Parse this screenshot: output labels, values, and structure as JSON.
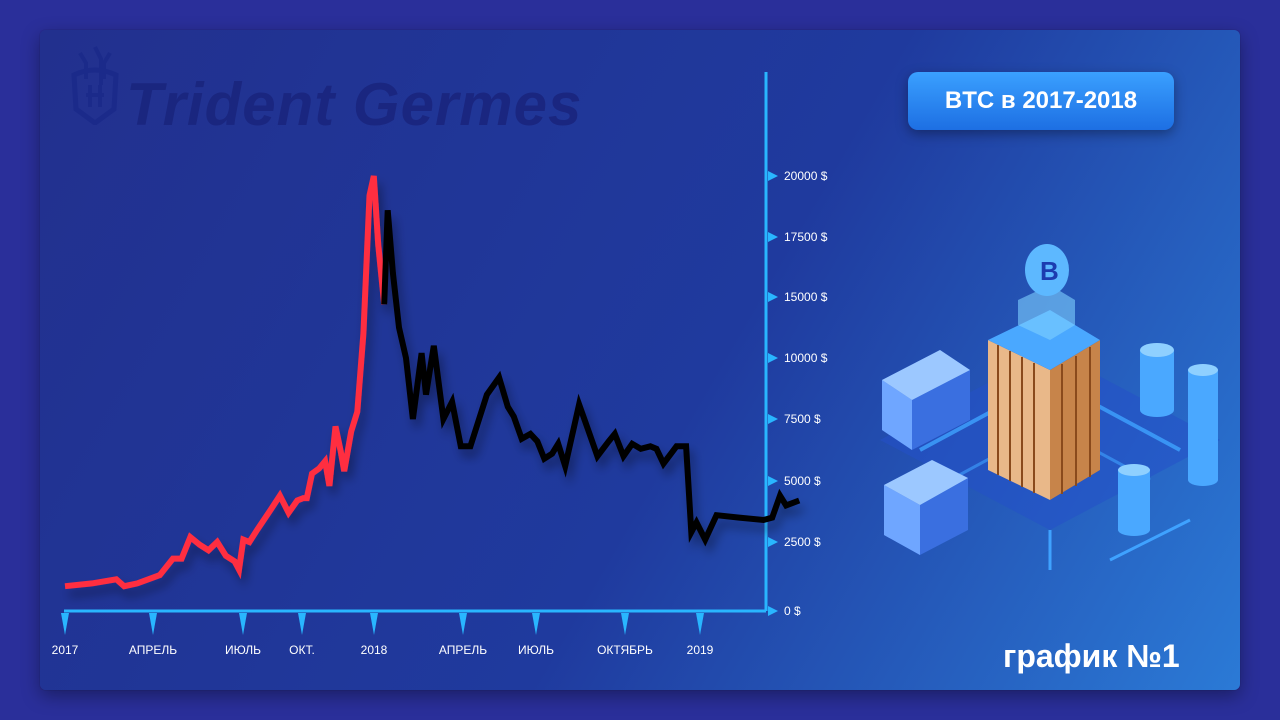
{
  "title_badge": "BTC в 2017-2018",
  "footer_label": "график №1",
  "brand_logo_text": "Trident Germes",
  "colors": {
    "rise": "#ff2e3f",
    "fall": "#050505",
    "axis": "#29b6ff",
    "grid": "#29b6ff",
    "badge": "#2d8cf5",
    "text": "#ffffff"
  },
  "chart_data": {
    "type": "line",
    "title": "",
    "xlabel": "",
    "ylabel": "",
    "x_tick_labels": [
      "2017",
      "АПРЕЛЬ",
      "ИЮЛЬ",
      "ОКТ.",
      "2018",
      "АПРЕЛЬ",
      "ИЮЛЬ",
      "ОКТЯБРЬ",
      "2019"
    ],
    "y_tick_labels": [
      "0 $",
      "2500 $",
      "5000 $",
      "7500 $",
      "10000 $",
      "15000 $",
      "17500 $",
      "20000 $"
    ],
    "y_tick_values": [
      0,
      2500,
      5000,
      7500,
      10000,
      15000,
      17500,
      20000
    ],
    "y_scale_note": "non-uniform axis: ticks equally spaced",
    "grid": true,
    "series": [
      {
        "color": "#ff2e3f",
        "points": [
          [
            "2017-01-01",
            900
          ],
          [
            "2017-02-01",
            1000
          ],
          [
            "2017-03-01",
            1150
          ],
          [
            "2017-03-10",
            900
          ],
          [
            "2017-03-25",
            1000
          ],
          [
            "2017-04-20",
            1300
          ],
          [
            "2017-05-05",
            1900
          ],
          [
            "2017-05-15",
            1900
          ],
          [
            "2017-05-25",
            2700
          ],
          [
            "2017-06-05",
            2400
          ],
          [
            "2017-06-15",
            2200
          ],
          [
            "2017-06-25",
            2500
          ],
          [
            "2017-07-05",
            2000
          ],
          [
            "2017-07-15",
            1800
          ],
          [
            "2017-07-20",
            1500
          ],
          [
            "2017-07-25",
            2600
          ],
          [
            "2017-08-01",
            2500
          ],
          [
            "2017-08-10",
            3000
          ],
          [
            "2017-08-25",
            3800
          ],
          [
            "2017-09-05",
            4400
          ],
          [
            "2017-09-15",
            3700
          ],
          [
            "2017-09-25",
            4200
          ],
          [
            "2017-10-02",
            4300
          ],
          [
            "2017-10-06",
            4300
          ],
          [
            "2017-10-12",
            5300
          ],
          [
            "2017-10-20",
            5500
          ],
          [
            "2017-10-27",
            5800
          ],
          [
            "2017-11-01",
            4800
          ],
          [
            "2017-11-08",
            7200
          ],
          [
            "2017-11-14",
            6200
          ],
          [
            "2017-11-18",
            5400
          ],
          [
            "2017-11-26",
            7000
          ],
          [
            "2017-12-03",
            7800
          ],
          [
            "2017-12-10",
            12000
          ],
          [
            "2017-12-17",
            19200
          ],
          [
            "2017-12-22",
            20000
          ],
          [
            "2017-12-27",
            17200
          ],
          [
            "2018-01-03",
            14400
          ]
        ]
      },
      {
        "color": "#050505",
        "points": [
          [
            "2018-01-03",
            14400
          ],
          [
            "2018-01-07",
            18600
          ],
          [
            "2018-01-13",
            16000
          ],
          [
            "2018-01-20",
            12500
          ],
          [
            "2018-01-28",
            10000
          ],
          [
            "2018-02-05",
            7500
          ],
          [
            "2018-02-15",
            10400
          ],
          [
            "2018-02-20",
            8500
          ],
          [
            "2018-03-01",
            11000
          ],
          [
            "2018-03-12",
            7500
          ],
          [
            "2018-03-22",
            8200
          ],
          [
            "2018-04-01",
            6400
          ],
          [
            "2018-04-12",
            6400
          ],
          [
            "2018-05-01",
            8500
          ],
          [
            "2018-05-15",
            9200
          ],
          [
            "2018-05-25",
            8000
          ],
          [
            "2018-06-01",
            7600
          ],
          [
            "2018-06-10",
            6700
          ],
          [
            "2018-06-20",
            6900
          ],
          [
            "2018-06-28",
            6600
          ],
          [
            "2018-07-06",
            5900
          ],
          [
            "2018-07-15",
            6100
          ],
          [
            "2018-07-22",
            6500
          ],
          [
            "2018-07-30",
            5600
          ],
          [
            "2018-08-10",
            7300
          ],
          [
            "2018-08-15",
            8100
          ],
          [
            "2018-08-25",
            7100
          ],
          [
            "2018-09-05",
            6000
          ],
          [
            "2018-09-18",
            6600
          ],
          [
            "2018-09-25",
            6900
          ],
          [
            "2018-10-05",
            6000
          ],
          [
            "2018-10-15",
            6500
          ],
          [
            "2018-10-25",
            6300
          ],
          [
            "2018-11-05",
            6400
          ],
          [
            "2018-11-12",
            6300
          ],
          [
            "2018-11-20",
            5700
          ],
          [
            "2018-12-05",
            6400
          ],
          [
            "2018-12-10",
            6400
          ],
          [
            "2018-12-16",
            6400
          ],
          [
            "2018-12-22",
            2900
          ],
          [
            "2018-12-28",
            3300
          ],
          [
            "2019-01-07",
            2600
          ],
          [
            "2019-01-20",
            3600
          ],
          [
            "2019-02-15",
            3500
          ],
          [
            "2019-03-15",
            3400
          ],
          [
            "2019-03-25",
            3500
          ],
          [
            "2019-04-03",
            4400
          ],
          [
            "2019-04-10",
            4000
          ],
          [
            "2019-04-25",
            4200
          ]
        ]
      }
    ]
  }
}
